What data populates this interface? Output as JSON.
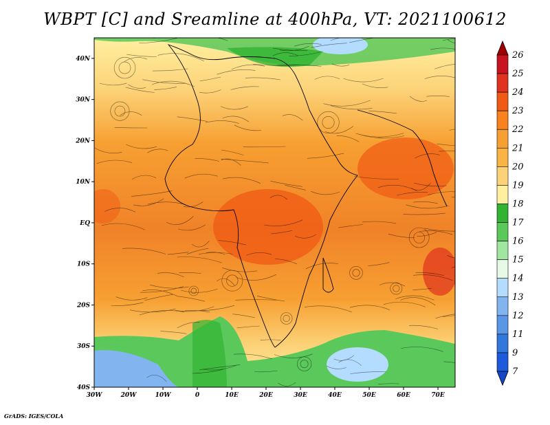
{
  "title": "WBPT [C] and Sreamline at 400hPa, VT: 2021100612",
  "credit": "GrADS: IGES/COLA",
  "lat_labels": [
    "40N",
    "30N",
    "20N",
    "10N",
    "EQ",
    "10S",
    "20S",
    "30S",
    "40S"
  ],
  "lon_labels": [
    "30W",
    "20W",
    "10W",
    "0",
    "10E",
    "20E",
    "30E",
    "40E",
    "50E",
    "60E",
    "70E"
  ],
  "colorbar": {
    "labels": [
      "26",
      "25",
      "24",
      "23",
      "22",
      "21",
      "20",
      "19",
      "18",
      "17",
      "16",
      "15",
      "14",
      "13",
      "12",
      "11",
      "9",
      "7"
    ],
    "colors": [
      "#a00000",
      "#c8141e",
      "#e0321e",
      "#f05a14",
      "#f7821e",
      "#f7a032",
      "#fab446",
      "#fcd278",
      "#fff0a0",
      "#32b432",
      "#5ac85a",
      "#a0e6a0",
      "#e6fae6",
      "#b4dcff",
      "#82b4f0",
      "#5a96e6",
      "#3278dc",
      "#1e5adc",
      "#1446c8"
    ]
  },
  "map": {
    "lon_range": [
      -30,
      75
    ],
    "lat_range": [
      -40,
      45
    ],
    "field": "WBPT 400hPa",
    "palette_note": "orange/red tropics, green/blue high latitudes"
  }
}
